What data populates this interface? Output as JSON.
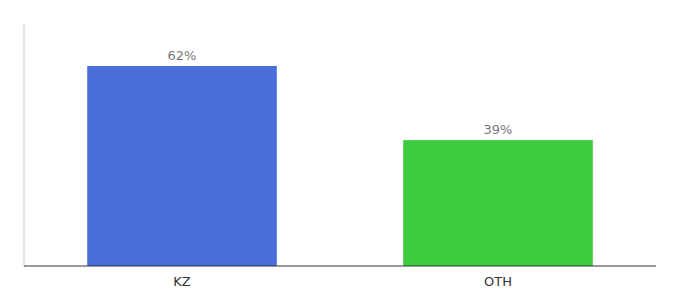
{
  "chart_data": {
    "type": "bar",
    "categories": [
      "KZ",
      "OTH"
    ],
    "values": [
      62,
      39
    ],
    "value_labels": [
      "62%",
      "39%"
    ],
    "colors": [
      "#4a6fdc",
      "#3dcc3d"
    ],
    "ylim": [
      0,
      75
    ],
    "data_labels": true,
    "tick_labels": "x",
    "grid": false
  }
}
